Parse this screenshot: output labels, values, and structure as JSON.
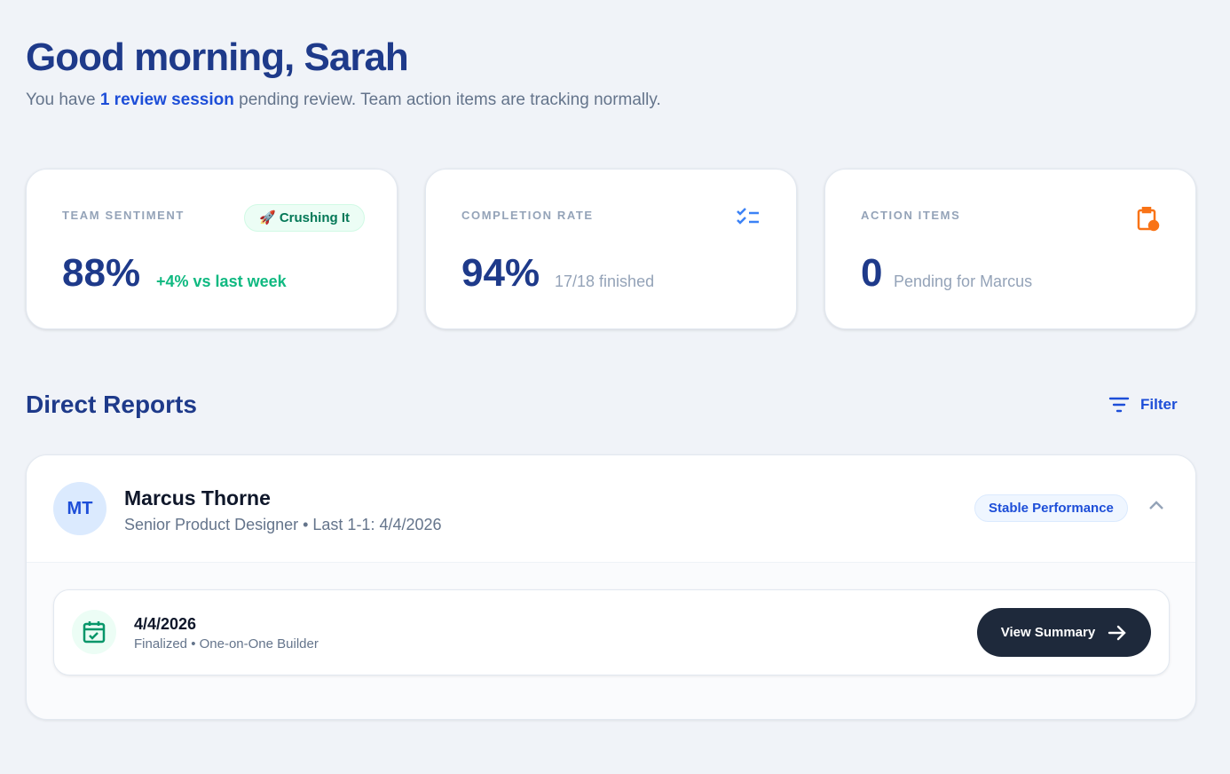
{
  "greeting": {
    "title": "Good morning, Sarah",
    "prefix": "You have ",
    "highlight": "1 review session",
    "suffix": " pending review. Team action items are tracking normally."
  },
  "stats": [
    {
      "label": "TEAM SENTIMENT",
      "value": "88%",
      "note": "+4% vs last week",
      "badge": "🚀 Crushing It",
      "note_color": "#10b981"
    },
    {
      "label": "COMPLETION RATE",
      "value": "94%",
      "note": "17/18 finished",
      "icon": "checklist-icon"
    },
    {
      "label": "ACTION ITEMS",
      "value": "0",
      "note": "Pending for Marcus",
      "icon": "clipboard-clock-icon"
    }
  ],
  "section": {
    "title": "Direct Reports",
    "filter_label": "Filter"
  },
  "report": {
    "initials": "MT",
    "name": "Marcus Thorne",
    "role": "Senior Product Designer • Last 1-1: 4/4/2026",
    "status": "Stable Performance",
    "session": {
      "date": "4/4/2026",
      "meta": "Finalized • One-on-One Builder",
      "button": "View Summary"
    }
  }
}
